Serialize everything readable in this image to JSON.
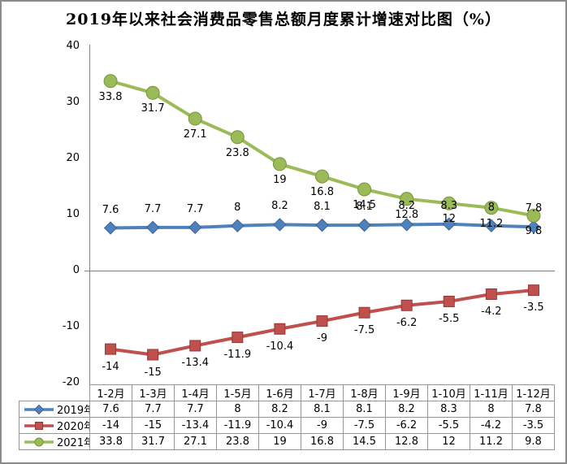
{
  "title": "2019年以来社会消费品零售总额月度累计增速对比图（%）",
  "chart_data": {
    "type": "line",
    "title": "2019年以来社会消费品零售总额月度累计增速对比图（%）",
    "categories": [
      "1-2月",
      "1-3月",
      "1-4月",
      "1-5月",
      "1-6月",
      "1-7月",
      "1-8月",
      "1-9月",
      "1-10月",
      "1-11月",
      "1-12月"
    ],
    "series": [
      {
        "name": "2019年",
        "color": "#4F81BD",
        "edge_color": "#3A6492",
        "marker": "diamond",
        "label_offset": -22,
        "values": [
          7.6,
          7.7,
          7.7,
          8,
          8.2,
          8.1,
          8.1,
          8.2,
          8.3,
          8,
          7.8
        ]
      },
      {
        "name": "2020年",
        "color": "#C0504D",
        "edge_color": "#953735",
        "marker": "square",
        "label_offset": 22,
        "values": [
          -14,
          -15,
          -13.4,
          -11.9,
          -10.4,
          -9,
          -7.5,
          -6.2,
          -5.5,
          -4.2,
          -3.5
        ]
      },
      {
        "name": "2021年",
        "color": "#9BBB59",
        "edge_color": "#77933C",
        "marker": "circle",
        "label_offset": 20,
        "values": [
          33.8,
          31.7,
          27.1,
          23.8,
          19,
          16.8,
          14.5,
          12.8,
          12,
          11.2,
          9.8
        ]
      }
    ],
    "ylim": [
      -20,
      40
    ],
    "yticks": [
      40,
      30,
      20,
      10,
      0,
      -10,
      -20
    ],
    "axis_color": "#808080",
    "grid": "zero-baseline-only",
    "data_labels": true,
    "legend_position": "data-table-left-column",
    "data_table": true
  }
}
